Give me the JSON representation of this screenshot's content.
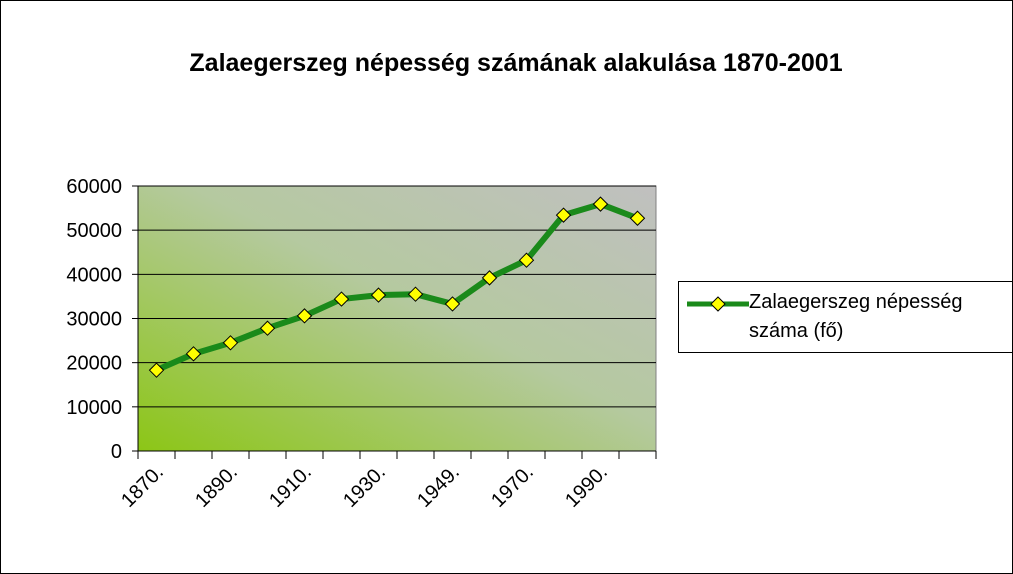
{
  "chart_data": {
    "type": "line",
    "title": "Zalaegerszeg népesség számának alakulása 1870-2001",
    "categories": [
      "1870.",
      null,
      "1890.",
      null,
      "1910.",
      null,
      "1930.",
      null,
      "1949.",
      null,
      "1970.",
      null,
      "1990.",
      null
    ],
    "series": [
      {
        "name": "Zalaegerszeg népesség száma (fő)",
        "color": "#1a8a1a",
        "values": [
          18300,
          22000,
          24500,
          27800,
          30600,
          34400,
          35300,
          35500,
          33300,
          39200,
          43200,
          53400,
          55900,
          52700
        ]
      }
    ],
    "ylim": [
      0,
      60000
    ],
    "yticks": [
      0,
      10000,
      20000,
      30000,
      40000,
      50000,
      60000
    ],
    "grid": true,
    "legend": "right"
  }
}
